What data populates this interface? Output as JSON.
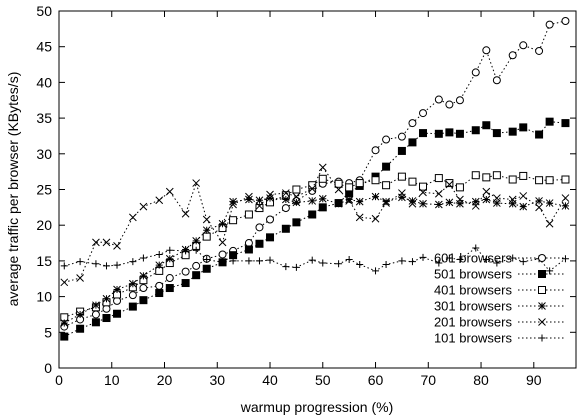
{
  "chart_data": {
    "type": "line",
    "xlabel": "warmup progression (%)",
    "ylabel": "average traffic per browser (KBytes/s)",
    "xlim": [
      0,
      98
    ],
    "ylim": [
      0,
      50
    ],
    "xticks": [
      0,
      10,
      20,
      30,
      40,
      50,
      60,
      70,
      80,
      90
    ],
    "yticks": [
      0,
      5,
      10,
      15,
      20,
      25,
      30,
      35,
      40,
      45,
      50
    ],
    "grid": false,
    "legend_position": "bottom-right",
    "series": [
      {
        "name": "601 browsers",
        "marker": "open-circle",
        "x": [
          1,
          4,
          7,
          9,
          11,
          14,
          16,
          19,
          21,
          24,
          26,
          28,
          31,
          33,
          36,
          38,
          40,
          43,
          45,
          48,
          50,
          53,
          55,
          57,
          60,
          62,
          65,
          67,
          69,
          72,
          74,
          76,
          79,
          81,
          83,
          86,
          88,
          91,
          93,
          96
        ],
        "y": [
          5.8,
          6.8,
          7.5,
          8.3,
          9.4,
          10.2,
          11.2,
          11.5,
          12.6,
          13.5,
          14.3,
          15.3,
          15.9,
          16.4,
          17.5,
          19.7,
          20.8,
          22.4,
          23.4,
          24.8,
          25.8,
          26.1,
          25.9,
          26.3,
          30.5,
          32.0,
          32.4,
          34.3,
          35.7,
          37.6,
          36.9,
          37.5,
          41.4,
          44.5,
          40.3,
          43.8,
          45.2,
          44.4,
          48.1,
          48.6
        ]
      },
      {
        "name": "501 browsers",
        "marker": "filled-square",
        "x": [
          1,
          4,
          7,
          9,
          11,
          14,
          16,
          19,
          21,
          24,
          26,
          28,
          31,
          33,
          36,
          38,
          40,
          43,
          45,
          48,
          50,
          53,
          55,
          57,
          60,
          62,
          65,
          67,
          69,
          72,
          74,
          76,
          79,
          81,
          83,
          86,
          88,
          91,
          93,
          96
        ],
        "y": [
          4.4,
          5.5,
          6.4,
          7.0,
          7.6,
          8.6,
          9.5,
          10.5,
          11.2,
          11.9,
          13.0,
          13.9,
          14.8,
          15.8,
          16.6,
          17.4,
          18.3,
          19.5,
          20.4,
          21.5,
          22.5,
          23.1,
          24.5,
          25.5,
          26.8,
          28.2,
          30.4,
          31.6,
          32.9,
          32.8,
          33.0,
          32.8,
          33.3,
          34.0,
          32.9,
          33.1,
          33.7,
          32.7,
          34.5,
          34.3
        ]
      },
      {
        "name": "401 browsers",
        "marker": "open-square",
        "x": [
          1,
          4,
          7,
          9,
          11,
          14,
          16,
          19,
          21,
          24,
          26,
          28,
          31,
          33,
          36,
          38,
          40,
          43,
          45,
          48,
          50,
          53,
          55,
          57,
          60,
          62,
          65,
          67,
          69,
          72,
          74,
          76,
          79,
          81,
          83,
          86,
          88,
          91,
          93,
          96
        ],
        "y": [
          7.1,
          7.9,
          8.5,
          9.2,
          10.3,
          11.3,
          12.3,
          13.6,
          14.7,
          15.8,
          17.1,
          18.4,
          19.6,
          20.7,
          21.5,
          22.4,
          23.2,
          24.2,
          25.0,
          25.6,
          26.5,
          25.8,
          25.3,
          25.9,
          26.3,
          25.6,
          26.8,
          26.1,
          25.4,
          26.6,
          25.9,
          25.3,
          27.0,
          26.7,
          27.0,
          26.4,
          26.9,
          26.3,
          26.3,
          26.4
        ]
      },
      {
        "name": "301 browsers",
        "marker": "asterisk",
        "x": [
          1,
          4,
          7,
          9,
          11,
          14,
          16,
          19,
          21,
          24,
          26,
          28,
          31,
          33,
          36,
          38,
          40,
          43,
          45,
          48,
          50,
          53,
          55,
          57,
          60,
          62,
          65,
          67,
          69,
          72,
          74,
          76,
          79,
          81,
          83,
          86,
          88,
          91,
          93,
          96
        ],
        "y": [
          6.3,
          7.5,
          8.8,
          9.7,
          11.0,
          11.8,
          12.9,
          14.4,
          15.3,
          16.6,
          17.8,
          19.3,
          20.2,
          23.3,
          23.6,
          23.5,
          23.8,
          23.6,
          23.2,
          23.4,
          23.7,
          23.0,
          23.6,
          23.3,
          24.0,
          23.3,
          23.9,
          23.4,
          23.0,
          22.9,
          23.2,
          23.0,
          23.3,
          23.6,
          23.1,
          23.0,
          22.6,
          23.4,
          23.1,
          22.7
        ]
      },
      {
        "name": "201 browsers",
        "marker": "cross",
        "x": [
          1,
          4,
          7,
          9,
          11,
          14,
          16,
          19,
          21,
          24,
          26,
          28,
          31,
          33,
          36,
          38,
          40,
          43,
          45,
          48,
          50,
          53,
          55,
          57,
          60,
          62,
          65,
          67,
          69,
          72,
          74,
          76,
          79,
          81,
          83,
          86,
          88,
          91,
          93,
          96
        ],
        "y": [
          12.0,
          12.6,
          17.6,
          17.6,
          17.1,
          21.1,
          22.6,
          23.5,
          24.7,
          21.6,
          25.9,
          20.8,
          17.6,
          22.9,
          24.0,
          22.7,
          24.3,
          24.5,
          24.0,
          25.1,
          28.1,
          25.0,
          23.4,
          21.1,
          20.9,
          23.1,
          24.5,
          23.0,
          24.6,
          24.4,
          25.7,
          23.6,
          22.7,
          24.7,
          23.8,
          23.6,
          24.1,
          22.5,
          20.2,
          23.8
        ]
      },
      {
        "name": "101 browsers",
        "marker": "plus",
        "x": [
          1,
          4,
          7,
          9,
          11,
          14,
          16,
          19,
          21,
          24,
          26,
          28,
          31,
          33,
          36,
          38,
          40,
          43,
          45,
          48,
          50,
          53,
          55,
          57,
          60,
          62,
          65,
          67,
          69,
          72,
          74,
          76,
          79,
          81,
          83,
          86,
          88,
          91,
          93,
          96
        ],
        "y": [
          14.3,
          14.9,
          14.6,
          14.3,
          14.4,
          14.9,
          15.4,
          15.9,
          16.5,
          16.4,
          16.5,
          15.2,
          14.8,
          15.0,
          15.0,
          15.0,
          15.1,
          14.2,
          14.1,
          15.1,
          14.7,
          14.6,
          15.2,
          14.5,
          13.6,
          14.5,
          15.0,
          14.9,
          15.5,
          14.7,
          15.4,
          15.2,
          16.8,
          15.2,
          14.7,
          15.4,
          14.9,
          15.3,
          13.6,
          15.3
        ]
      }
    ]
  }
}
